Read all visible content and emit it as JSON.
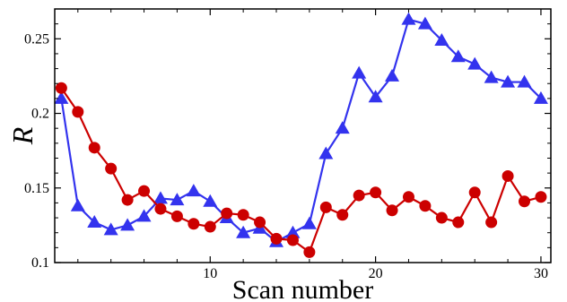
{
  "chart_data": {
    "type": "line",
    "xlabel": "Scan number",
    "ylabel": "R",
    "xlim": [
      0.6,
      30.6
    ],
    "ylim": [
      0.1,
      0.27
    ],
    "x_ticks": [
      10,
      20,
      30
    ],
    "y_ticks": [
      0.1,
      0.15,
      0.2,
      0.25
    ],
    "grid": false,
    "x": [
      1,
      2,
      3,
      4,
      5,
      6,
      7,
      8,
      9,
      10,
      11,
      12,
      13,
      14,
      15,
      16,
      17,
      18,
      19,
      20,
      21,
      22,
      23,
      24,
      25,
      26,
      27,
      28,
      29,
      30
    ],
    "series": [
      {
        "color": "#3333ee",
        "marker": "triangle",
        "values": [
          0.21,
          0.138,
          0.127,
          0.122,
          0.125,
          0.131,
          0.143,
          0.142,
          0.148,
          0.141,
          0.13,
          0.12,
          0.123,
          0.114,
          0.12,
          0.126,
          0.173,
          0.19,
          0.227,
          0.211,
          0.225,
          0.263,
          0.26,
          0.249,
          0.238,
          0.233,
          0.224,
          0.221,
          0.221,
          0.21
        ]
      },
      {
        "color": "#cc0000",
        "marker": "circle",
        "values": [
          0.217,
          0.201,
          0.177,
          0.163,
          0.142,
          0.148,
          0.136,
          0.131,
          0.126,
          0.124,
          0.133,
          0.132,
          0.127,
          0.116,
          0.115,
          0.107,
          0.137,
          0.132,
          0.145,
          0.147,
          0.135,
          0.144,
          0.138,
          0.13,
          0.127,
          0.147,
          0.127,
          0.158,
          0.141,
          0.144
        ]
      }
    ]
  }
}
